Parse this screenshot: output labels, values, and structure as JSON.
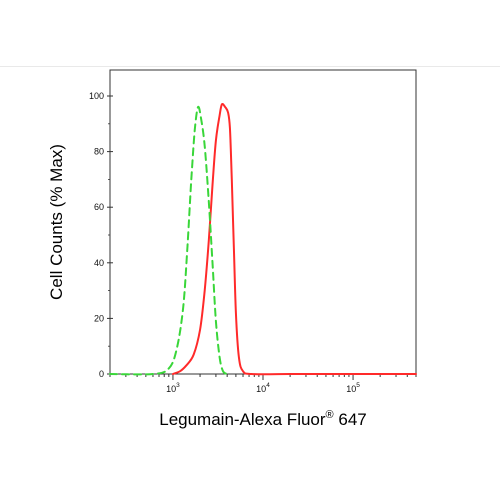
{
  "chart_data": {
    "type": "line",
    "title": "",
    "xlabel": "Legumain-Alexa Fluor",
    "xlabel_superscript": "®",
    "xlabel_suffix": " 647",
    "ylabel": "Cell Counts (% Max)",
    "x_scale": "log",
    "xlim": [
      200,
      500000
    ],
    "ylim": [
      0,
      100
    ],
    "x_ticks": [
      {
        "base": "10",
        "exp": "3",
        "value": 1000
      },
      {
        "base": "10",
        "exp": "4",
        "value": 10000
      },
      {
        "base": "10",
        "exp": "5",
        "value": 100000
      }
    ],
    "y_ticks": [
      "0",
      "20",
      "40",
      "60",
      "80",
      "100"
    ],
    "grid": false,
    "legend": "none",
    "series": [
      {
        "color": "#ff2a2a",
        "style": "solid",
        "points": [
          [
            1000,
            0
          ],
          [
            1200,
            1
          ],
          [
            1400,
            3
          ],
          [
            1700,
            7
          ],
          [
            2000,
            16
          ],
          [
            2250,
            30
          ],
          [
            2500,
            48
          ],
          [
            2750,
            68
          ],
          [
            3000,
            84
          ],
          [
            3300,
            93
          ],
          [
            3500,
            97
          ],
          [
            3800,
            96
          ],
          [
            4100,
            94
          ],
          [
            4300,
            88
          ],
          [
            4500,
            70
          ],
          [
            4750,
            45
          ],
          [
            5000,
            22
          ],
          [
            5400,
            6
          ],
          [
            6000,
            1
          ],
          [
            7500,
            0
          ],
          [
            20000,
            0
          ],
          [
            40000,
            0
          ],
          [
            100000,
            0
          ],
          [
            200000,
            0
          ],
          [
            500000,
            0
          ]
        ]
      },
      {
        "color": "#39d639",
        "style": "dashed",
        "points": [
          [
            200,
            0
          ],
          [
            600,
            0
          ],
          [
            900,
            2
          ],
          [
            1100,
            9
          ],
          [
            1300,
            24
          ],
          [
            1450,
            46
          ],
          [
            1600,
            70
          ],
          [
            1750,
            88
          ],
          [
            1900,
            96
          ],
          [
            2050,
            92
          ],
          [
            2250,
            82
          ],
          [
            2500,
            62
          ],
          [
            2750,
            40
          ],
          [
            3000,
            19
          ],
          [
            3300,
            6
          ],
          [
            3600,
            1
          ],
          [
            4000,
            0
          ]
        ]
      }
    ]
  }
}
